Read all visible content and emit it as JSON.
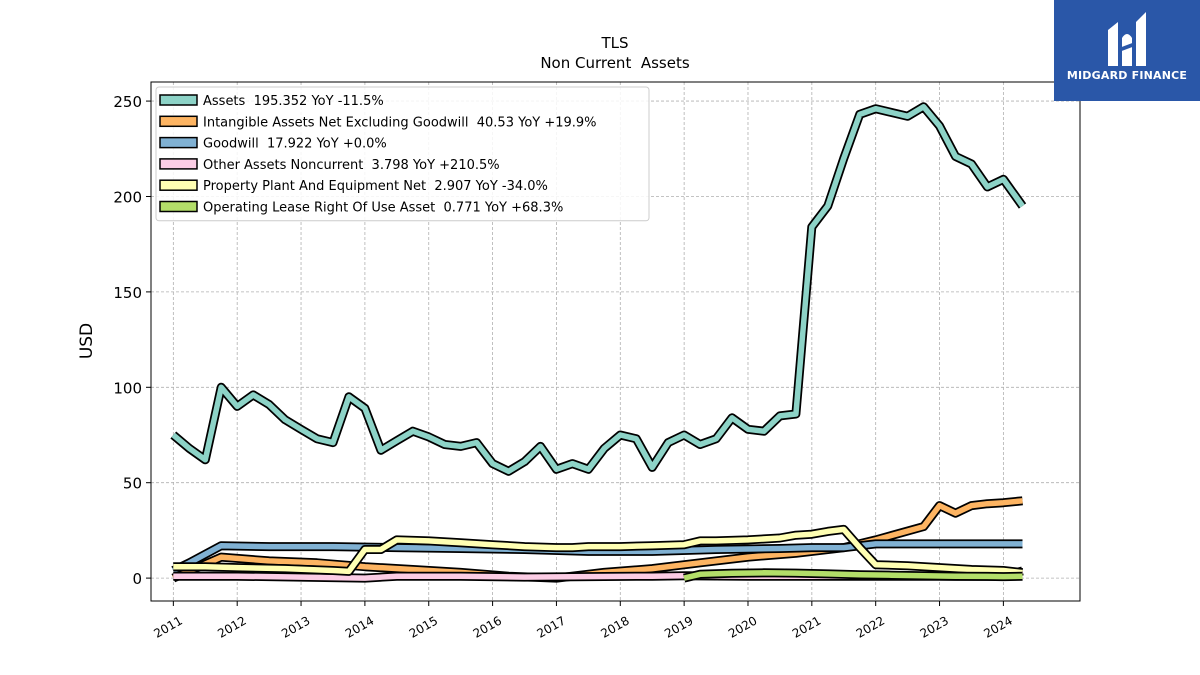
{
  "chart_data": {
    "type": "line",
    "title": "TLS",
    "subtitle": "Non Current  Assets",
    "ylabel": "USD",
    "xlabel": "",
    "ylim": [
      -12,
      260
    ],
    "yticks": [
      0,
      50,
      100,
      150,
      200,
      250
    ],
    "xticks": [
      "2011",
      "2012",
      "2013",
      "2014",
      "2015",
      "2016",
      "2017",
      "2018",
      "2019",
      "2020",
      "2021",
      "2022",
      "2023",
      "2024"
    ],
    "grid": true,
    "legend_position": "top-left",
    "series": [
      {
        "name": "Assets  195.352 YoY -11.5%",
        "color": "#8dd3c7",
        "points": [
          [
            2011.0,
            75
          ],
          [
            2011.25,
            68
          ],
          [
            2011.5,
            62
          ],
          [
            2011.75,
            100
          ],
          [
            2012.0,
            90
          ],
          [
            2012.25,
            96
          ],
          [
            2012.5,
            91
          ],
          [
            2012.75,
            83
          ],
          [
            2013.0,
            78
          ],
          [
            2013.25,
            73
          ],
          [
            2013.5,
            71
          ],
          [
            2013.75,
            95
          ],
          [
            2014.0,
            89
          ],
          [
            2014.25,
            67
          ],
          [
            2014.5,
            72
          ],
          [
            2014.75,
            77
          ],
          [
            2015.0,
            74
          ],
          [
            2015.25,
            70
          ],
          [
            2015.5,
            69
          ],
          [
            2015.75,
            71
          ],
          [
            2016.0,
            60
          ],
          [
            2016.25,
            56
          ],
          [
            2016.5,
            61
          ],
          [
            2016.75,
            69
          ],
          [
            2017.0,
            57
          ],
          [
            2017.25,
            60
          ],
          [
            2017.5,
            57
          ],
          [
            2017.75,
            68
          ],
          [
            2018.0,
            75
          ],
          [
            2018.25,
            73
          ],
          [
            2018.5,
            58
          ],
          [
            2018.75,
            71
          ],
          [
            2019.0,
            75
          ],
          [
            2019.25,
            70
          ],
          [
            2019.5,
            73
          ],
          [
            2019.75,
            84
          ],
          [
            2020.0,
            78
          ],
          [
            2020.25,
            77
          ],
          [
            2020.5,
            85
          ],
          [
            2020.75,
            86
          ],
          [
            2021.0,
            184
          ],
          [
            2021.25,
            195
          ],
          [
            2021.5,
            220
          ],
          [
            2021.75,
            243
          ],
          [
            2022.0,
            246
          ],
          [
            2022.25,
            244
          ],
          [
            2022.5,
            242
          ],
          [
            2022.75,
            247
          ],
          [
            2023.0,
            237
          ],
          [
            2023.25,
            221
          ],
          [
            2023.5,
            217
          ],
          [
            2023.75,
            205
          ],
          [
            2024.0,
            209
          ],
          [
            2024.3,
            195
          ]
        ]
      },
      {
        "name": "Intangible Assets Net Excluding Goodwill  40.53 YoY +19.9%",
        "color": "#fdb462",
        "points": [
          [
            2011.0,
            0
          ],
          [
            2011.75,
            11
          ],
          [
            2012.5,
            9
          ],
          [
            2013.25,
            8
          ],
          [
            2014.0,
            6
          ],
          [
            2014.75,
            4.5
          ],
          [
            2015.5,
            3
          ],
          [
            2016.25,
            1
          ],
          [
            2017.0,
            0
          ],
          [
            2017.75,
            3
          ],
          [
            2018.5,
            5
          ],
          [
            2019.25,
            8
          ],
          [
            2020.0,
            11
          ],
          [
            2020.75,
            13
          ],
          [
            2021.5,
            16
          ],
          [
            2022.0,
            20
          ],
          [
            2022.75,
            27
          ],
          [
            2023.0,
            38
          ],
          [
            2023.25,
            34
          ],
          [
            2023.5,
            38
          ],
          [
            2023.75,
            39
          ],
          [
            2024.0,
            39.5
          ],
          [
            2024.3,
            40.5
          ]
        ]
      },
      {
        "name": "Goodwill  17.922 YoY +0.0%",
        "color": "#80b1d3",
        "points": [
          [
            2011.0,
            4
          ],
          [
            2011.25,
            8
          ],
          [
            2011.75,
            17
          ],
          [
            2012.5,
            16.5
          ],
          [
            2013.5,
            16.5
          ],
          [
            2014.5,
            16
          ],
          [
            2015.5,
            15.5
          ],
          [
            2016.5,
            15
          ],
          [
            2017.5,
            14
          ],
          [
            2018.5,
            14
          ],
          [
            2019.5,
            15
          ],
          [
            2020.5,
            15.5
          ],
          [
            2021.0,
            16
          ],
          [
            2021.5,
            16
          ],
          [
            2022.0,
            17.9
          ],
          [
            2023.0,
            17.9
          ],
          [
            2024.3,
            17.9
          ]
        ]
      },
      {
        "name": "Other Assets Noncurrent  3.798 YoY +210.5%",
        "color": "#fccde5",
        "points": [
          [
            2011.0,
            1
          ],
          [
            2012.0,
            1
          ],
          [
            2013.0,
            0.5
          ],
          [
            2014.0,
            0
          ],
          [
            2014.5,
            1
          ],
          [
            2015.5,
            1
          ],
          [
            2016.5,
            0.5
          ],
          [
            2017.5,
            0.8
          ],
          [
            2018.5,
            1
          ],
          [
            2019.0,
            1.2
          ],
          [
            2020.0,
            1
          ],
          [
            2021.0,
            1
          ],
          [
            2022.0,
            1
          ],
          [
            2023.0,
            1
          ],
          [
            2024.0,
            1
          ],
          [
            2024.3,
            3.8
          ]
        ]
      },
      {
        "name": "Property Plant And Equipment Net  2.907 YoY -34.0%",
        "color": "#ffffb3",
        "points": [
          [
            2011.0,
            6
          ],
          [
            2011.5,
            6
          ],
          [
            2012.0,
            5.5
          ],
          [
            2012.75,
            5
          ],
          [
            2013.5,
            4
          ],
          [
            2013.75,
            3.5
          ],
          [
            2014.0,
            15
          ],
          [
            2014.25,
            15
          ],
          [
            2014.5,
            20
          ],
          [
            2015.0,
            19.5
          ],
          [
            2015.5,
            18.5
          ],
          [
            2016.0,
            17.5
          ],
          [
            2016.5,
            16.5
          ],
          [
            2017.0,
            16
          ],
          [
            2017.25,
            16
          ],
          [
            2017.5,
            16.5
          ],
          [
            2018.0,
            16.5
          ],
          [
            2018.5,
            17
          ],
          [
            2019.0,
            17.5
          ],
          [
            2019.25,
            19.5
          ],
          [
            2019.5,
            19.5
          ],
          [
            2020.0,
            20
          ],
          [
            2020.5,
            21
          ],
          [
            2020.75,
            22.5
          ],
          [
            2021.0,
            23
          ],
          [
            2021.25,
            24.5
          ],
          [
            2021.5,
            25.5
          ],
          [
            2021.75,
            16
          ],
          [
            2022.0,
            7
          ],
          [
            2022.5,
            6.5
          ],
          [
            2023.0,
            5.5
          ],
          [
            2023.5,
            4.5
          ],
          [
            2024.0,
            4
          ],
          [
            2024.3,
            2.9
          ]
        ]
      },
      {
        "name": "Operating Lease Right Of Use Asset  0.771 YoY +68.3%",
        "color": "#b3de69",
        "points": [
          [
            2019.0,
            0
          ],
          [
            2019.25,
            2
          ],
          [
            2019.75,
            2.5
          ],
          [
            2020.25,
            2.8
          ],
          [
            2020.75,
            2.6
          ],
          [
            2021.25,
            2.2
          ],
          [
            2021.75,
            1.8
          ],
          [
            2022.25,
            1.5
          ],
          [
            2022.75,
            1.2
          ],
          [
            2023.25,
            1
          ],
          [
            2023.75,
            0.9
          ],
          [
            2024.0,
            0.8
          ],
          [
            2024.3,
            1
          ]
        ]
      }
    ]
  },
  "logo": {
    "text": "MIDGARD FINANCE",
    "bg_color": "#2a57a8"
  }
}
